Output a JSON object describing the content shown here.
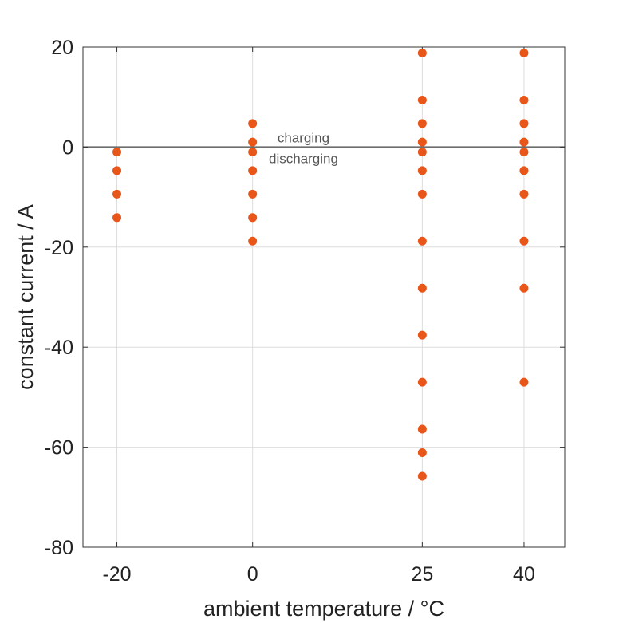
{
  "chart_data": {
    "type": "scatter",
    "title": "",
    "xlabel": "ambient temperature / °C",
    "ylabel": "constant current / A",
    "xlim": [
      -25,
      46
    ],
    "ylim": [
      -80,
      20
    ],
    "x_ticks": [
      -20,
      0,
      25,
      40
    ],
    "x_tick_labels": [
      "-20",
      "0",
      "25",
      "40"
    ],
    "y_ticks": [
      20,
      0,
      -20,
      -40,
      -60,
      -80
    ],
    "y_tick_labels": [
      "20",
      "0",
      "-20",
      "-40",
      "-60",
      "-80"
    ],
    "grid": true,
    "reference_line": {
      "y": 0
    },
    "annotations": {
      "above": "charging",
      "below": "discharging"
    },
    "marker_color": "#e8561a",
    "series": [
      {
        "points": [
          {
            "x": -20,
            "y": -1
          },
          {
            "x": -20,
            "y": -4.7
          },
          {
            "x": -20,
            "y": -9.4
          },
          {
            "x": -20,
            "y": -14.1
          },
          {
            "x": 0,
            "y": 4.7
          },
          {
            "x": 0,
            "y": 1
          },
          {
            "x": 0,
            "y": -1
          },
          {
            "x": 0,
            "y": -4.7
          },
          {
            "x": 0,
            "y": -9.4
          },
          {
            "x": 0,
            "y": -14.1
          },
          {
            "x": 0,
            "y": -18.8
          },
          {
            "x": 25,
            "y": 18.8
          },
          {
            "x": 25,
            "y": 9.4
          },
          {
            "x": 25,
            "y": 4.7
          },
          {
            "x": 25,
            "y": 1
          },
          {
            "x": 25,
            "y": -1
          },
          {
            "x": 25,
            "y": -4.7
          },
          {
            "x": 25,
            "y": -9.4
          },
          {
            "x": 25,
            "y": -18.8
          },
          {
            "x": 25,
            "y": -28.2
          },
          {
            "x": 25,
            "y": -37.6
          },
          {
            "x": 25,
            "y": -47
          },
          {
            "x": 25,
            "y": -56.4
          },
          {
            "x": 25,
            "y": -61.1
          },
          {
            "x": 25,
            "y": -65.8
          },
          {
            "x": 40,
            "y": 18.8
          },
          {
            "x": 40,
            "y": 9.4
          },
          {
            "x": 40,
            "y": 4.7
          },
          {
            "x": 40,
            "y": 1
          },
          {
            "x": 40,
            "y": -1
          },
          {
            "x": 40,
            "y": -4.7
          },
          {
            "x": 40,
            "y": -9.4
          },
          {
            "x": 40,
            "y": -18.8
          },
          {
            "x": 40,
            "y": -28.2
          },
          {
            "x": 40,
            "y": -47
          }
        ]
      }
    ]
  }
}
